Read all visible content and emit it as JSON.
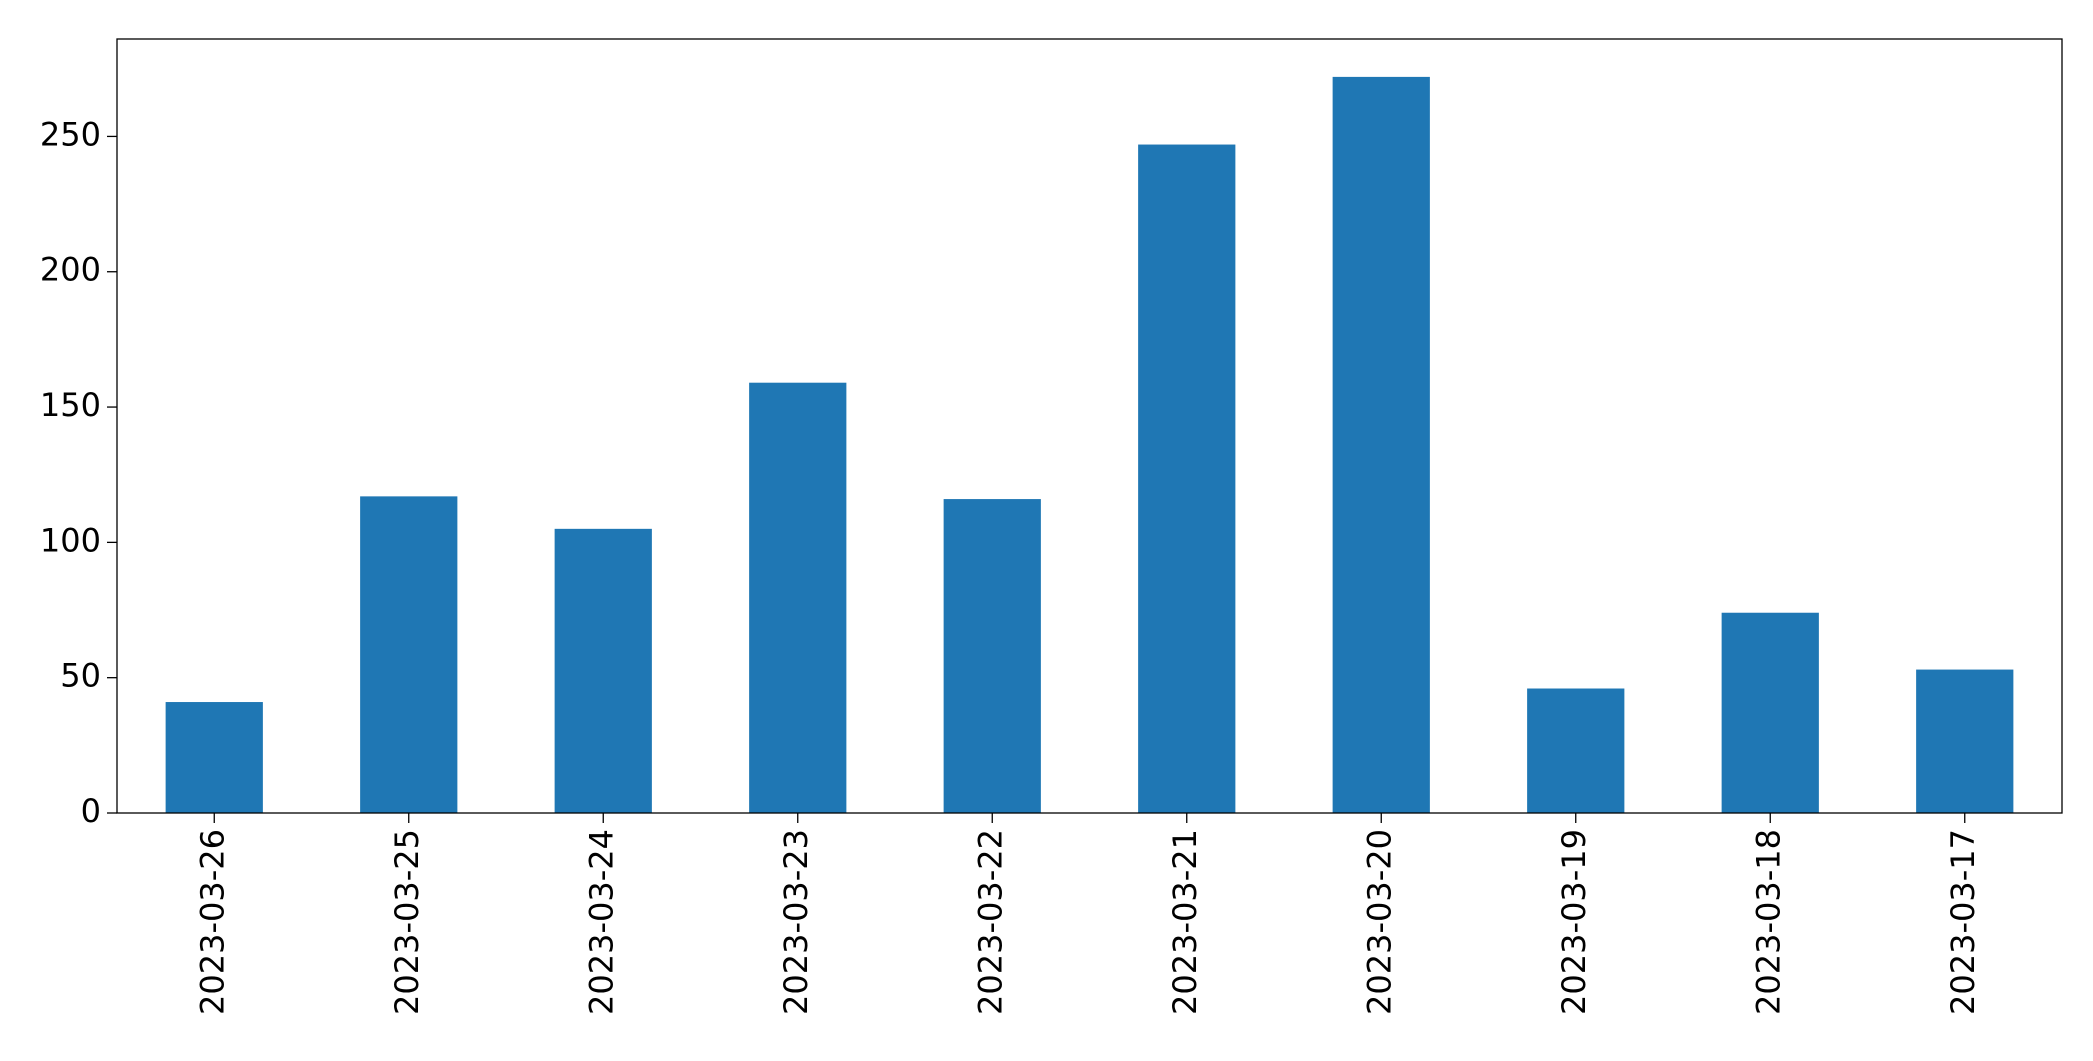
{
  "chart_data": {
    "type": "bar",
    "categories": [
      "2023-03-26",
      "2023-03-25",
      "2023-03-24",
      "2023-03-23",
      "2023-03-22",
      "2023-03-21",
      "2023-03-20",
      "2023-03-19",
      "2023-03-18",
      "2023-03-17"
    ],
    "values": [
      41,
      117,
      105,
      159,
      116,
      247,
      272,
      46,
      74,
      53
    ],
    "color": "#1f77b4",
    "ylim": [
      0,
      286
    ],
    "yticks": [
      0,
      50,
      100,
      150,
      200,
      250
    ],
    "grid": false
  }
}
